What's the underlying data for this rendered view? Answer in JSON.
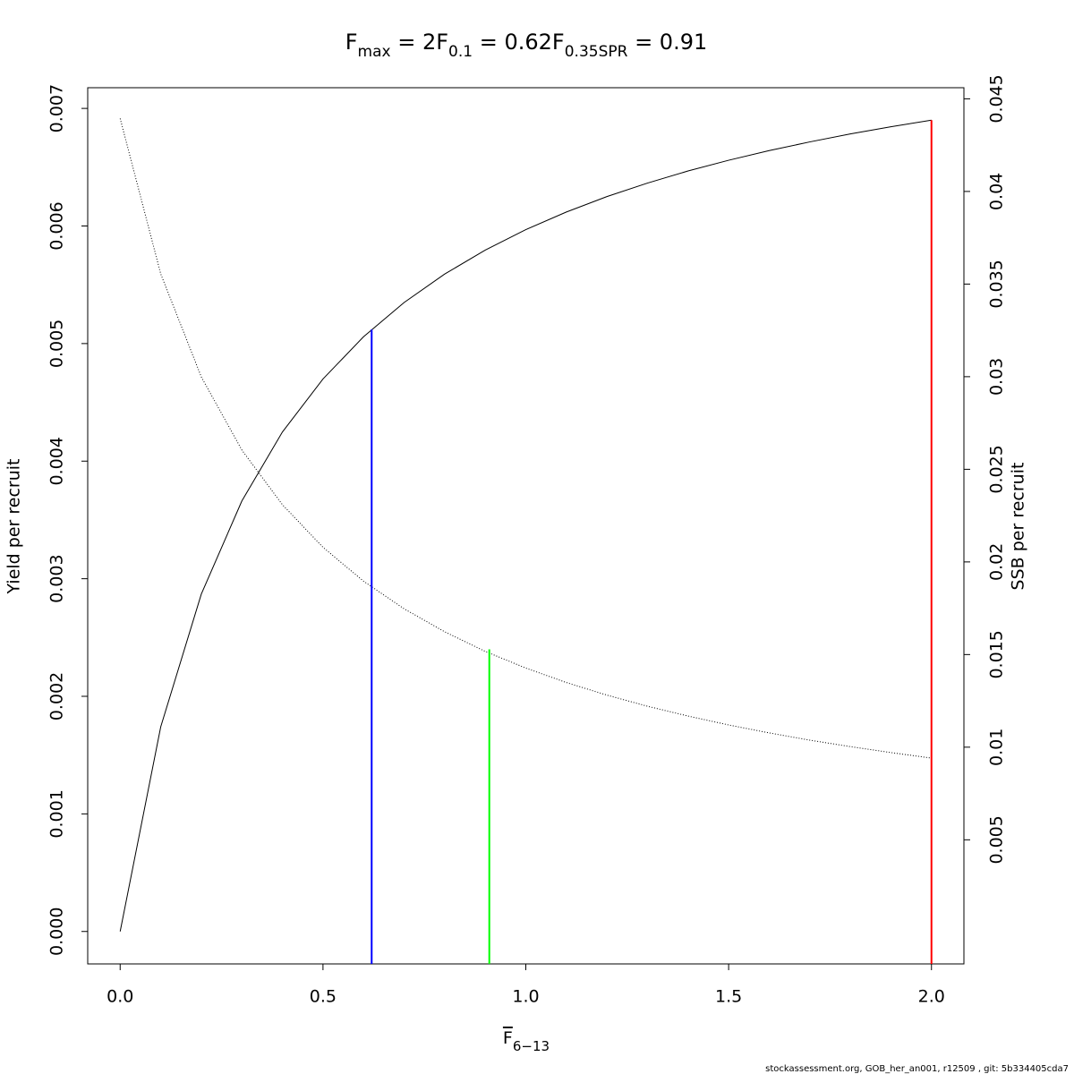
{
  "chart_data": {
    "type": "line",
    "title": [
      {
        "text": "F",
        "sub": "max",
        "tail": " = 2"
      },
      {
        "text": "F",
        "sub": "0.1",
        "tail": " = 0.62"
      },
      {
        "text": "F",
        "sub": "0.35SPR",
        "tail": " = 0.91"
      }
    ],
    "xlabel": {
      "text": "F",
      "sub": "6−13"
    },
    "ylabel": "Yield per recruit",
    "y2label": "SSB per recruit",
    "footer": "stockassessment.org, GOB_her_an001, r12509 , git: 5b334405cda7",
    "x": [
      0,
      0.1,
      0.2,
      0.3,
      0.4,
      0.5,
      0.6,
      0.7,
      0.8,
      0.9,
      1.0,
      1.1,
      1.2,
      1.3,
      1.4,
      1.5,
      1.6,
      1.7,
      1.8,
      1.9,
      2.0
    ],
    "series": [
      {
        "color": "#000000",
        "style": "solid",
        "values": [
          0,
          0.00174,
          0.002869,
          0.003661,
          0.004248,
          0.004699,
          0.005058,
          0.005349,
          0.005591,
          0.005795,
          0.005969,
          0.006119,
          0.00625,
          0.006365,
          0.006468,
          0.006559,
          0.006641,
          0.006715,
          0.006783,
          0.006844,
          0.0069
        ]
      },
      {
        "color": "#000000",
        "style": "dotted",
        "axis": "y2",
        "values": [
          0.04394,
          0.03555,
          0.02999,
          0.02604,
          0.02309,
          0.02079,
          0.01896,
          0.01747,
          0.01623,
          0.01517,
          0.01427,
          0.01349,
          0.01281,
          0.01221,
          0.01168,
          0.0112,
          0.01077,
          0.01038,
          0.01003,
          0.00971,
          0.00941
        ]
      }
    ],
    "reference_lines": [
      {
        "x": 0.62,
        "y": 0.00512,
        "color": "#0000ff"
      },
      {
        "x": 0.91,
        "y": 0.0024,
        "color": "#00ff00"
      },
      {
        "x": 2,
        "y": 0.0069,
        "color": "#ff0000"
      }
    ],
    "xlim": [
      -0.08,
      2.08
    ],
    "xticks": [
      {
        "value": 0,
        "label": "0.0"
      },
      0.5,
      {
        "value": 1,
        "label": "1.0"
      },
      1.5,
      {
        "value": 2,
        "label": "2.0"
      }
    ],
    "ylim": [
      -0.000276,
      0.007176
    ],
    "yticks": [
      {
        "value": 0,
        "label": "0.000"
      },
      0.001,
      0.002,
      0.003,
      0.004,
      0.005,
      0.006,
      0.007
    ],
    "y2lim": [
      -0.0017,
      0.0456
    ],
    "y2ticks": [
      0.005,
      0.01,
      0.015,
      0.02,
      0.025,
      0.03,
      0.035,
      0.04,
      0.045
    ]
  }
}
